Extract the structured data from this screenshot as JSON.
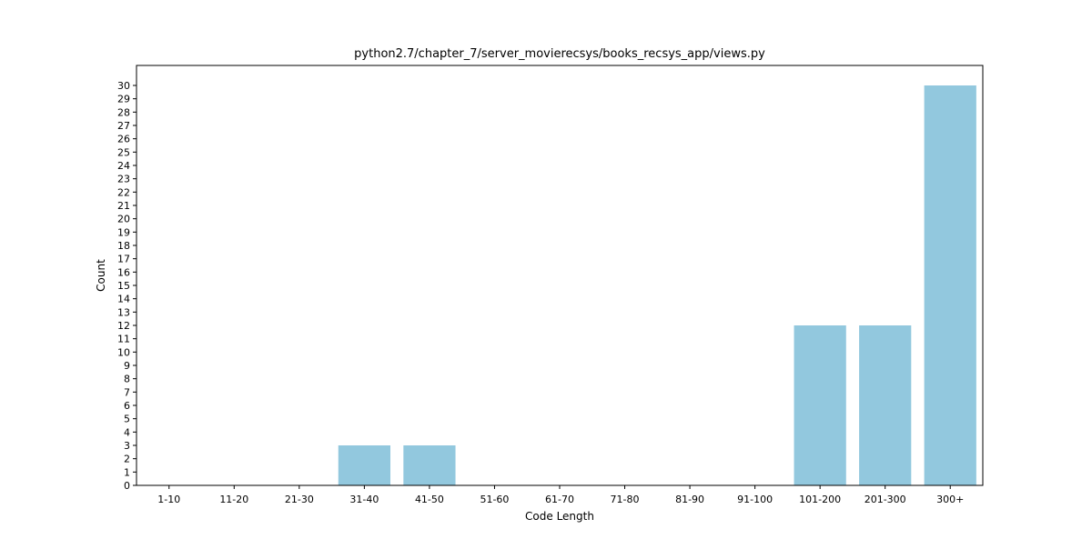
{
  "chart_data": {
    "type": "bar",
    "title": "python2.7/chapter_7/server_movierecsys/books_recsys_app/views.py",
    "xlabel": "Code Length",
    "ylabel": "Count",
    "categories": [
      "1-10",
      "11-20",
      "21-30",
      "31-40",
      "41-50",
      "51-60",
      "61-70",
      "71-80",
      "81-90",
      "91-100",
      "101-200",
      "201-300",
      "300+"
    ],
    "values": [
      0,
      0,
      0,
      3,
      3,
      0,
      0,
      0,
      0,
      0,
      12,
      12,
      30
    ],
    "ylim": [
      0,
      31.5
    ],
    "yticks": [
      0,
      1,
      2,
      3,
      4,
      5,
      6,
      7,
      8,
      9,
      10,
      11,
      12,
      13,
      14,
      15,
      16,
      17,
      18,
      19,
      20,
      21,
      22,
      23,
      24,
      25,
      26,
      27,
      28,
      29,
      30
    ],
    "grid": false,
    "bar_color": "#92c8de"
  }
}
